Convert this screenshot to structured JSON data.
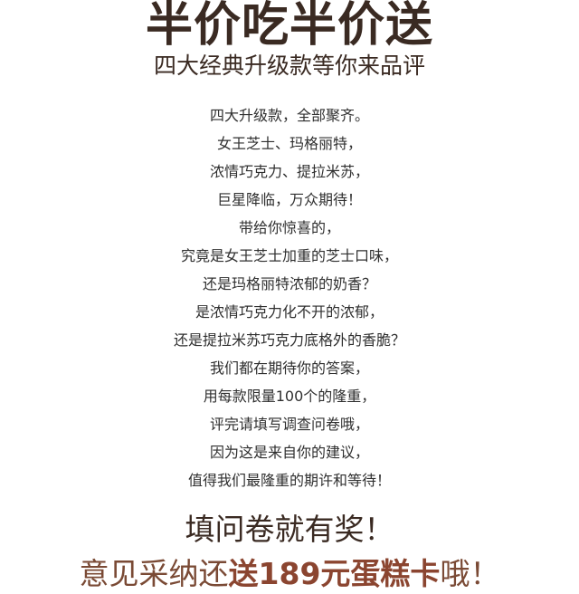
{
  "header": {
    "title": "半价吃半价送",
    "subtitle": "四大经典升级款等你来品评"
  },
  "body": {
    "lines": [
      "四大升级款，全部聚齐。",
      "女王芝士、玛格丽特，",
      "浓情巧克力、提拉米苏，",
      "巨星降临，万众期待！",
      "带给你惊喜的，",
      "究竟是女王芝士加重的芝士口味，",
      "还是玛格丽特浓郁的奶香？",
      "是浓情巧克力化不开的浓郁，",
      "还是提拉米苏巧克力底格外的香脆？",
      "我们都在期待你的答案，",
      "用每款限量100个的隆重，",
      "评完请填写调查问卷哦，",
      "因为这是来自你的建议，",
      "值得我们最隆重的期许和等待！"
    ]
  },
  "footer": {
    "cta": "填问卷就有奖！",
    "reward_prefix": "意见采纳还",
    "reward_highlight": "送189元蛋糕卡",
    "reward_suffix": "哦！"
  },
  "colors": {
    "text_dark": "#3a2a22",
    "body_text": "#2f2f2f",
    "accent_brown": "#8b4530"
  }
}
